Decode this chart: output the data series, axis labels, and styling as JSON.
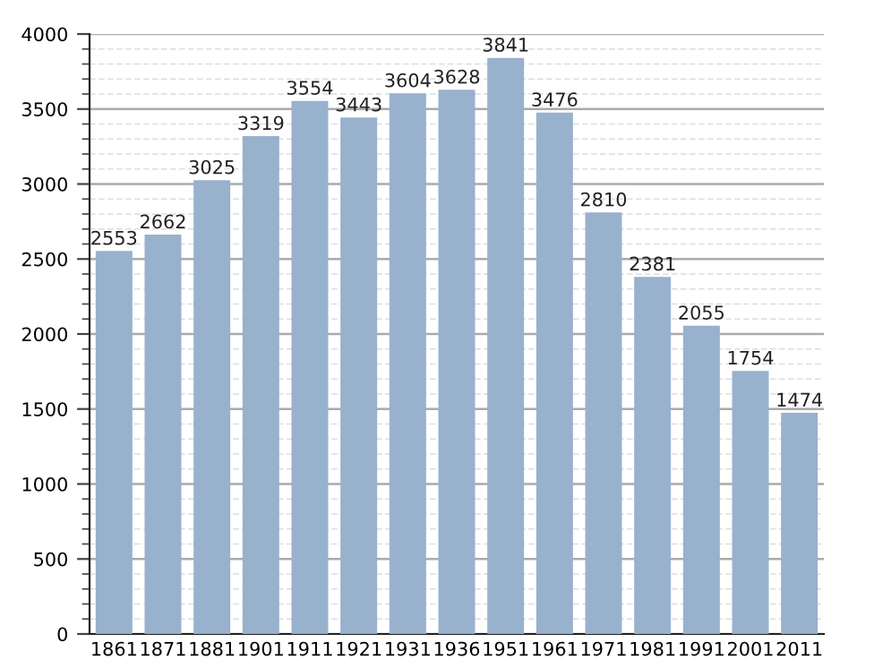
{
  "chart_data": {
    "type": "bar",
    "categories": [
      "1861",
      "1871",
      "1881",
      "1901",
      "1911",
      "1921",
      "1931",
      "1936",
      "1951",
      "1961",
      "1971",
      "1981",
      "1991",
      "2001",
      "2011"
    ],
    "values": [
      2553,
      2662,
      3025,
      3319,
      3554,
      3443,
      3604,
      3628,
      3841,
      3476,
      2810,
      2381,
      2055,
      1754,
      1474
    ],
    "color": "#98b1cd",
    "data_labels": true,
    "ylim": [
      0,
      4000
    ],
    "yticks": [
      0,
      {
        "value": 100,
        "label": null
      },
      {
        "value": 200,
        "label": null
      },
      {
        "value": 300,
        "label": null
      },
      {
        "value": 400,
        "label": null
      },
      500,
      {
        "value": 600,
        "label": null
      },
      {
        "value": 700,
        "label": null
      },
      {
        "value": 800,
        "label": null
      },
      {
        "value": 900,
        "label": null
      },
      1000,
      {
        "value": 1100,
        "label": null
      },
      {
        "value": 1200,
        "label": null
      },
      {
        "value": 1300,
        "label": null
      },
      {
        "value": 1400,
        "label": null
      },
      1500,
      {
        "value": 1600,
        "label": null
      },
      {
        "value": 1700,
        "label": null
      },
      {
        "value": 1800,
        "label": null
      },
      {
        "value": 1900,
        "label": null
      },
      2000,
      {
        "value": 2100,
        "label": null
      },
      {
        "value": 2200,
        "label": null
      },
      {
        "value": 2300,
        "label": null
      },
      {
        "value": 2400,
        "label": null
      },
      2500,
      {
        "value": 2600,
        "label": null
      },
      {
        "value": 2700,
        "label": null
      },
      {
        "value": 2800,
        "label": null
      },
      {
        "value": 2900,
        "label": null
      },
      3000,
      {
        "value": 3100,
        "label": null
      },
      {
        "value": 3200,
        "label": null
      },
      {
        "value": 3300,
        "label": null
      },
      {
        "value": 3400,
        "label": null
      },
      3500,
      {
        "value": 3600,
        "label": null
      },
      {
        "value": 3700,
        "label": null
      },
      {
        "value": 3800,
        "label": null
      },
      {
        "value": 3900,
        "label": null
      },
      4000
    ],
    "grid": "y"
  }
}
